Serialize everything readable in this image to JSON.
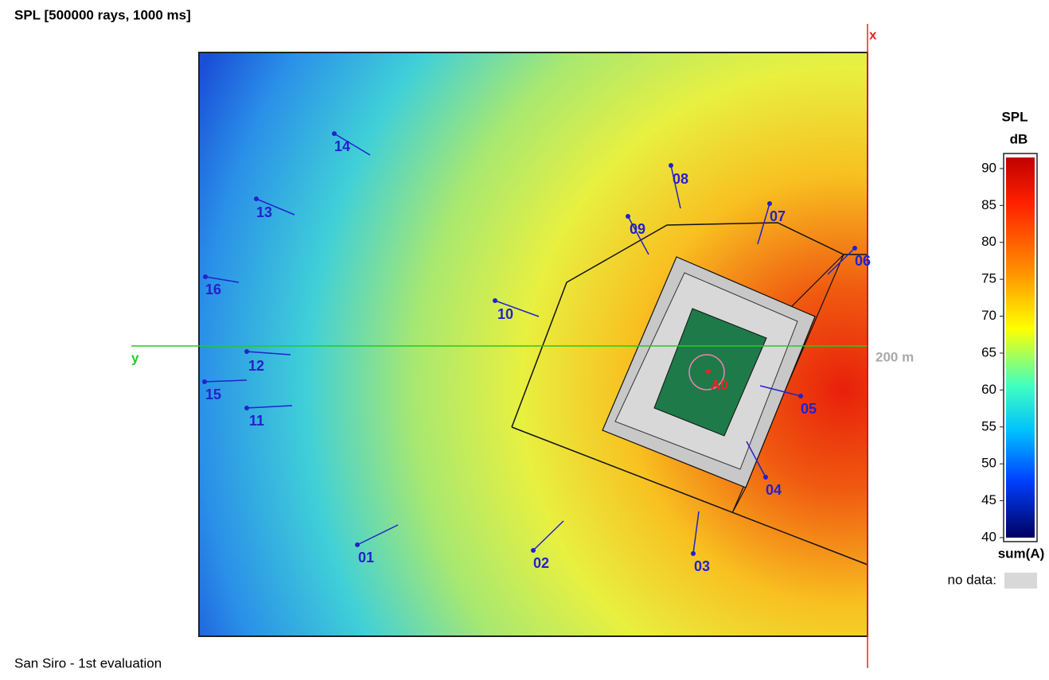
{
  "title": "SPL [500000 rays, 1000 ms]",
  "footer": "San Siro - 1st evaluation",
  "axes": {
    "x": "x",
    "y": "y",
    "distance": "200 m"
  },
  "colorbar": {
    "title": "SPL",
    "unit": "dB",
    "lim": [
      40,
      91.5
    ],
    "ticks": [
      90,
      85,
      80,
      75,
      70,
      65,
      60,
      55,
      50,
      45,
      40
    ],
    "caption": "sum(A)",
    "no_data": "no data:"
  },
  "source": "A0",
  "receivers": [
    "14",
    "13",
    "16",
    "10",
    "12",
    "15",
    "11",
    "01",
    "02",
    "03",
    "04",
    "05",
    "06",
    "07",
    "08",
    "09"
  ]
}
